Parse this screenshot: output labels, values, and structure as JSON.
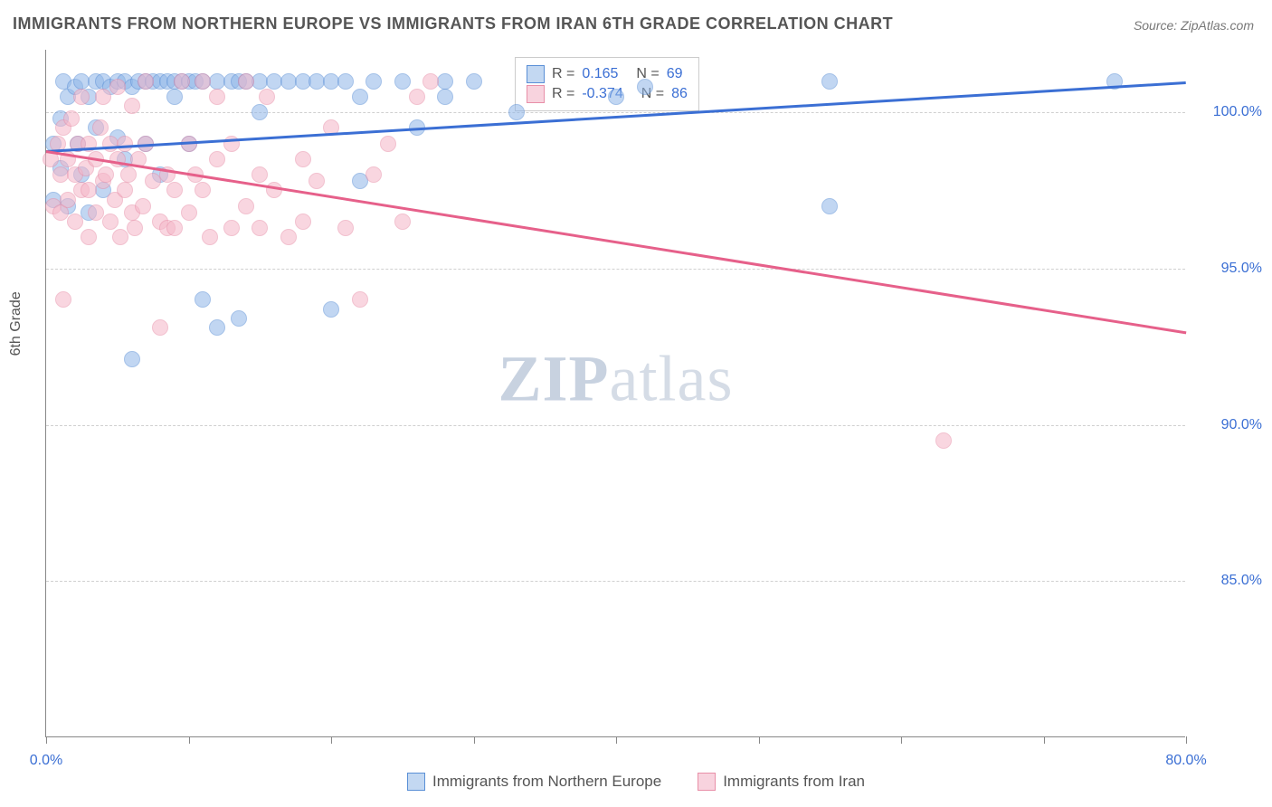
{
  "title": "IMMIGRANTS FROM NORTHERN EUROPE VS IMMIGRANTS FROM IRAN 6TH GRADE CORRELATION CHART",
  "source_label": "Source: ZipAtlas.com",
  "ylabel": "6th Grade",
  "watermark": {
    "part1": "ZIP",
    "part2": "atlas"
  },
  "chart": {
    "type": "scatter",
    "xlim": [
      0,
      80
    ],
    "ylim": [
      80,
      102
    ],
    "xtick_positions": [
      0,
      10,
      20,
      30,
      40,
      50,
      60,
      70,
      80
    ],
    "xtick_labels": {
      "0": "0.0%",
      "80": "80.0%"
    },
    "ytick_positions": [
      85,
      90,
      95,
      100
    ],
    "ytick_labels": [
      "85.0%",
      "90.0%",
      "95.0%",
      "100.0%"
    ],
    "background_color": "#ffffff",
    "grid_color": "#d0d0d0",
    "point_radius": 9,
    "series": [
      {
        "name": "Immigrants from Northern Europe",
        "color_fill": "#8fb6e8",
        "color_stroke": "#5a8fd6",
        "R": "0.165",
        "N": "69",
        "trend": {
          "x1": 0,
          "y1": 98.8,
          "x2": 80,
          "y2": 101.0,
          "color": "#3b6fd4"
        },
        "points": [
          [
            0.5,
            99.0
          ],
          [
            0.5,
            97.2
          ],
          [
            1.0,
            99.8
          ],
          [
            1.0,
            98.2
          ],
          [
            1.2,
            101.0
          ],
          [
            1.5,
            100.5
          ],
          [
            1.5,
            97.0
          ],
          [
            2.0,
            100.8
          ],
          [
            2.2,
            99.0
          ],
          [
            2.5,
            101.0
          ],
          [
            2.5,
            98.0
          ],
          [
            3.0,
            100.5
          ],
          [
            3.0,
            96.8
          ],
          [
            3.5,
            101.0
          ],
          [
            3.5,
            99.5
          ],
          [
            4.0,
            101.0
          ],
          [
            4.0,
            97.5
          ],
          [
            4.5,
            100.8
          ],
          [
            5.0,
            101.0
          ],
          [
            5.0,
            99.2
          ],
          [
            5.5,
            101.0
          ],
          [
            5.5,
            98.5
          ],
          [
            6.0,
            100.8
          ],
          [
            6.0,
            92.1
          ],
          [
            6.5,
            101.0
          ],
          [
            7.0,
            101.0
          ],
          [
            7.0,
            99.0
          ],
          [
            7.5,
            101.0
          ],
          [
            8.0,
            101.0
          ],
          [
            8.0,
            98.0
          ],
          [
            8.5,
            101.0
          ],
          [
            9.0,
            101.0
          ],
          [
            9.0,
            100.5
          ],
          [
            9.5,
            101.0
          ],
          [
            10,
            101.0
          ],
          [
            10,
            99.0
          ],
          [
            10.5,
            101.0
          ],
          [
            11,
            101.0
          ],
          [
            11,
            94.0
          ],
          [
            12,
            101.0
          ],
          [
            12,
            93.1
          ],
          [
            13,
            101.0
          ],
          [
            13.5,
            101.0
          ],
          [
            13.5,
            93.4
          ],
          [
            14,
            101.0
          ],
          [
            15,
            101.0
          ],
          [
            15,
            100.0
          ],
          [
            16,
            101.0
          ],
          [
            17,
            101.0
          ],
          [
            18,
            101.0
          ],
          [
            19,
            101.0
          ],
          [
            20,
            101.0
          ],
          [
            20,
            93.7
          ],
          [
            21,
            101.0
          ],
          [
            22,
            100.5
          ],
          [
            22,
            97.8
          ],
          [
            23,
            101.0
          ],
          [
            25,
            101.0
          ],
          [
            26,
            99.5
          ],
          [
            28,
            101.0
          ],
          [
            28,
            100.5
          ],
          [
            30,
            101.0
          ],
          [
            33,
            100.0
          ],
          [
            40,
            100.5
          ],
          [
            42,
            100.8
          ],
          [
            55,
            101.0
          ],
          [
            55,
            97.0
          ],
          [
            75,
            101.0
          ]
        ]
      },
      {
        "name": "Immigrants from Iran",
        "color_fill": "#f5b6c8",
        "color_stroke": "#e88fa8",
        "R": "-0.374",
        "N": "86",
        "trend": {
          "x1": 0,
          "y1": 98.8,
          "x2": 80,
          "y2": 93.0,
          "color": "#e6608a"
        },
        "points": [
          [
            0.3,
            98.5
          ],
          [
            0.5,
            97.0
          ],
          [
            0.8,
            99.0
          ],
          [
            1.0,
            98.0
          ],
          [
            1.0,
            96.8
          ],
          [
            1.2,
            99.5
          ],
          [
            1.2,
            94.0
          ],
          [
            1.5,
            98.5
          ],
          [
            1.5,
            97.2
          ],
          [
            1.8,
            99.8
          ],
          [
            2.0,
            98.0
          ],
          [
            2.0,
            96.5
          ],
          [
            2.2,
            99.0
          ],
          [
            2.5,
            97.5
          ],
          [
            2.5,
            100.5
          ],
          [
            2.8,
            98.2
          ],
          [
            3.0,
            99.0
          ],
          [
            3.0,
            96.0
          ],
          [
            3.0,
            97.5
          ],
          [
            3.5,
            98.5
          ],
          [
            3.5,
            96.8
          ],
          [
            3.8,
            99.5
          ],
          [
            4.0,
            97.8
          ],
          [
            4.0,
            100.5
          ],
          [
            4.2,
            98.0
          ],
          [
            4.5,
            99.0
          ],
          [
            4.5,
            96.5
          ],
          [
            4.8,
            97.2
          ],
          [
            5.0,
            98.5
          ],
          [
            5.0,
            100.8
          ],
          [
            5.2,
            96.0
          ],
          [
            5.5,
            99.0
          ],
          [
            5.5,
            97.5
          ],
          [
            5.8,
            98.0
          ],
          [
            6.0,
            96.8
          ],
          [
            6.0,
            100.2
          ],
          [
            6.2,
            96.3
          ],
          [
            6.5,
            98.5
          ],
          [
            6.8,
            97.0
          ],
          [
            7.0,
            99.0
          ],
          [
            7.0,
            101.0
          ],
          [
            7.5,
            97.8
          ],
          [
            8.0,
            96.5
          ],
          [
            8.0,
            93.1
          ],
          [
            8.5,
            98.0
          ],
          [
            8.5,
            96.3
          ],
          [
            9.0,
            97.5
          ],
          [
            9.0,
            96.3
          ],
          [
            9.5,
            101.0
          ],
          [
            10,
            96.8
          ],
          [
            10,
            99.0
          ],
          [
            10.5,
            98.0
          ],
          [
            11,
            97.5
          ],
          [
            11,
            101.0
          ],
          [
            11.5,
            96.0
          ],
          [
            12,
            98.5
          ],
          [
            12,
            100.5
          ],
          [
            13,
            96.3
          ],
          [
            13,
            99.0
          ],
          [
            14,
            101.0
          ],
          [
            14,
            97.0
          ],
          [
            15,
            98.0
          ],
          [
            15,
            96.3
          ],
          [
            15.5,
            100.5
          ],
          [
            16,
            97.5
          ],
          [
            17,
            96.0
          ],
          [
            18,
            98.5
          ],
          [
            18,
            96.5
          ],
          [
            19,
            97.8
          ],
          [
            20,
            99.5
          ],
          [
            21,
            96.3
          ],
          [
            22,
            94.0
          ],
          [
            23,
            98.0
          ],
          [
            24,
            99.0
          ],
          [
            25,
            96.5
          ],
          [
            26,
            100.5
          ],
          [
            27,
            101.0
          ],
          [
            63,
            89.5
          ]
        ]
      }
    ]
  },
  "legend_stats": {
    "r_label": "R  =",
    "n_label": "N  ="
  },
  "bottom_legend": [
    {
      "swatch": "blue",
      "label": "Immigrants from Northern Europe"
    },
    {
      "swatch": "pink",
      "label": "Immigrants from Iran"
    }
  ]
}
